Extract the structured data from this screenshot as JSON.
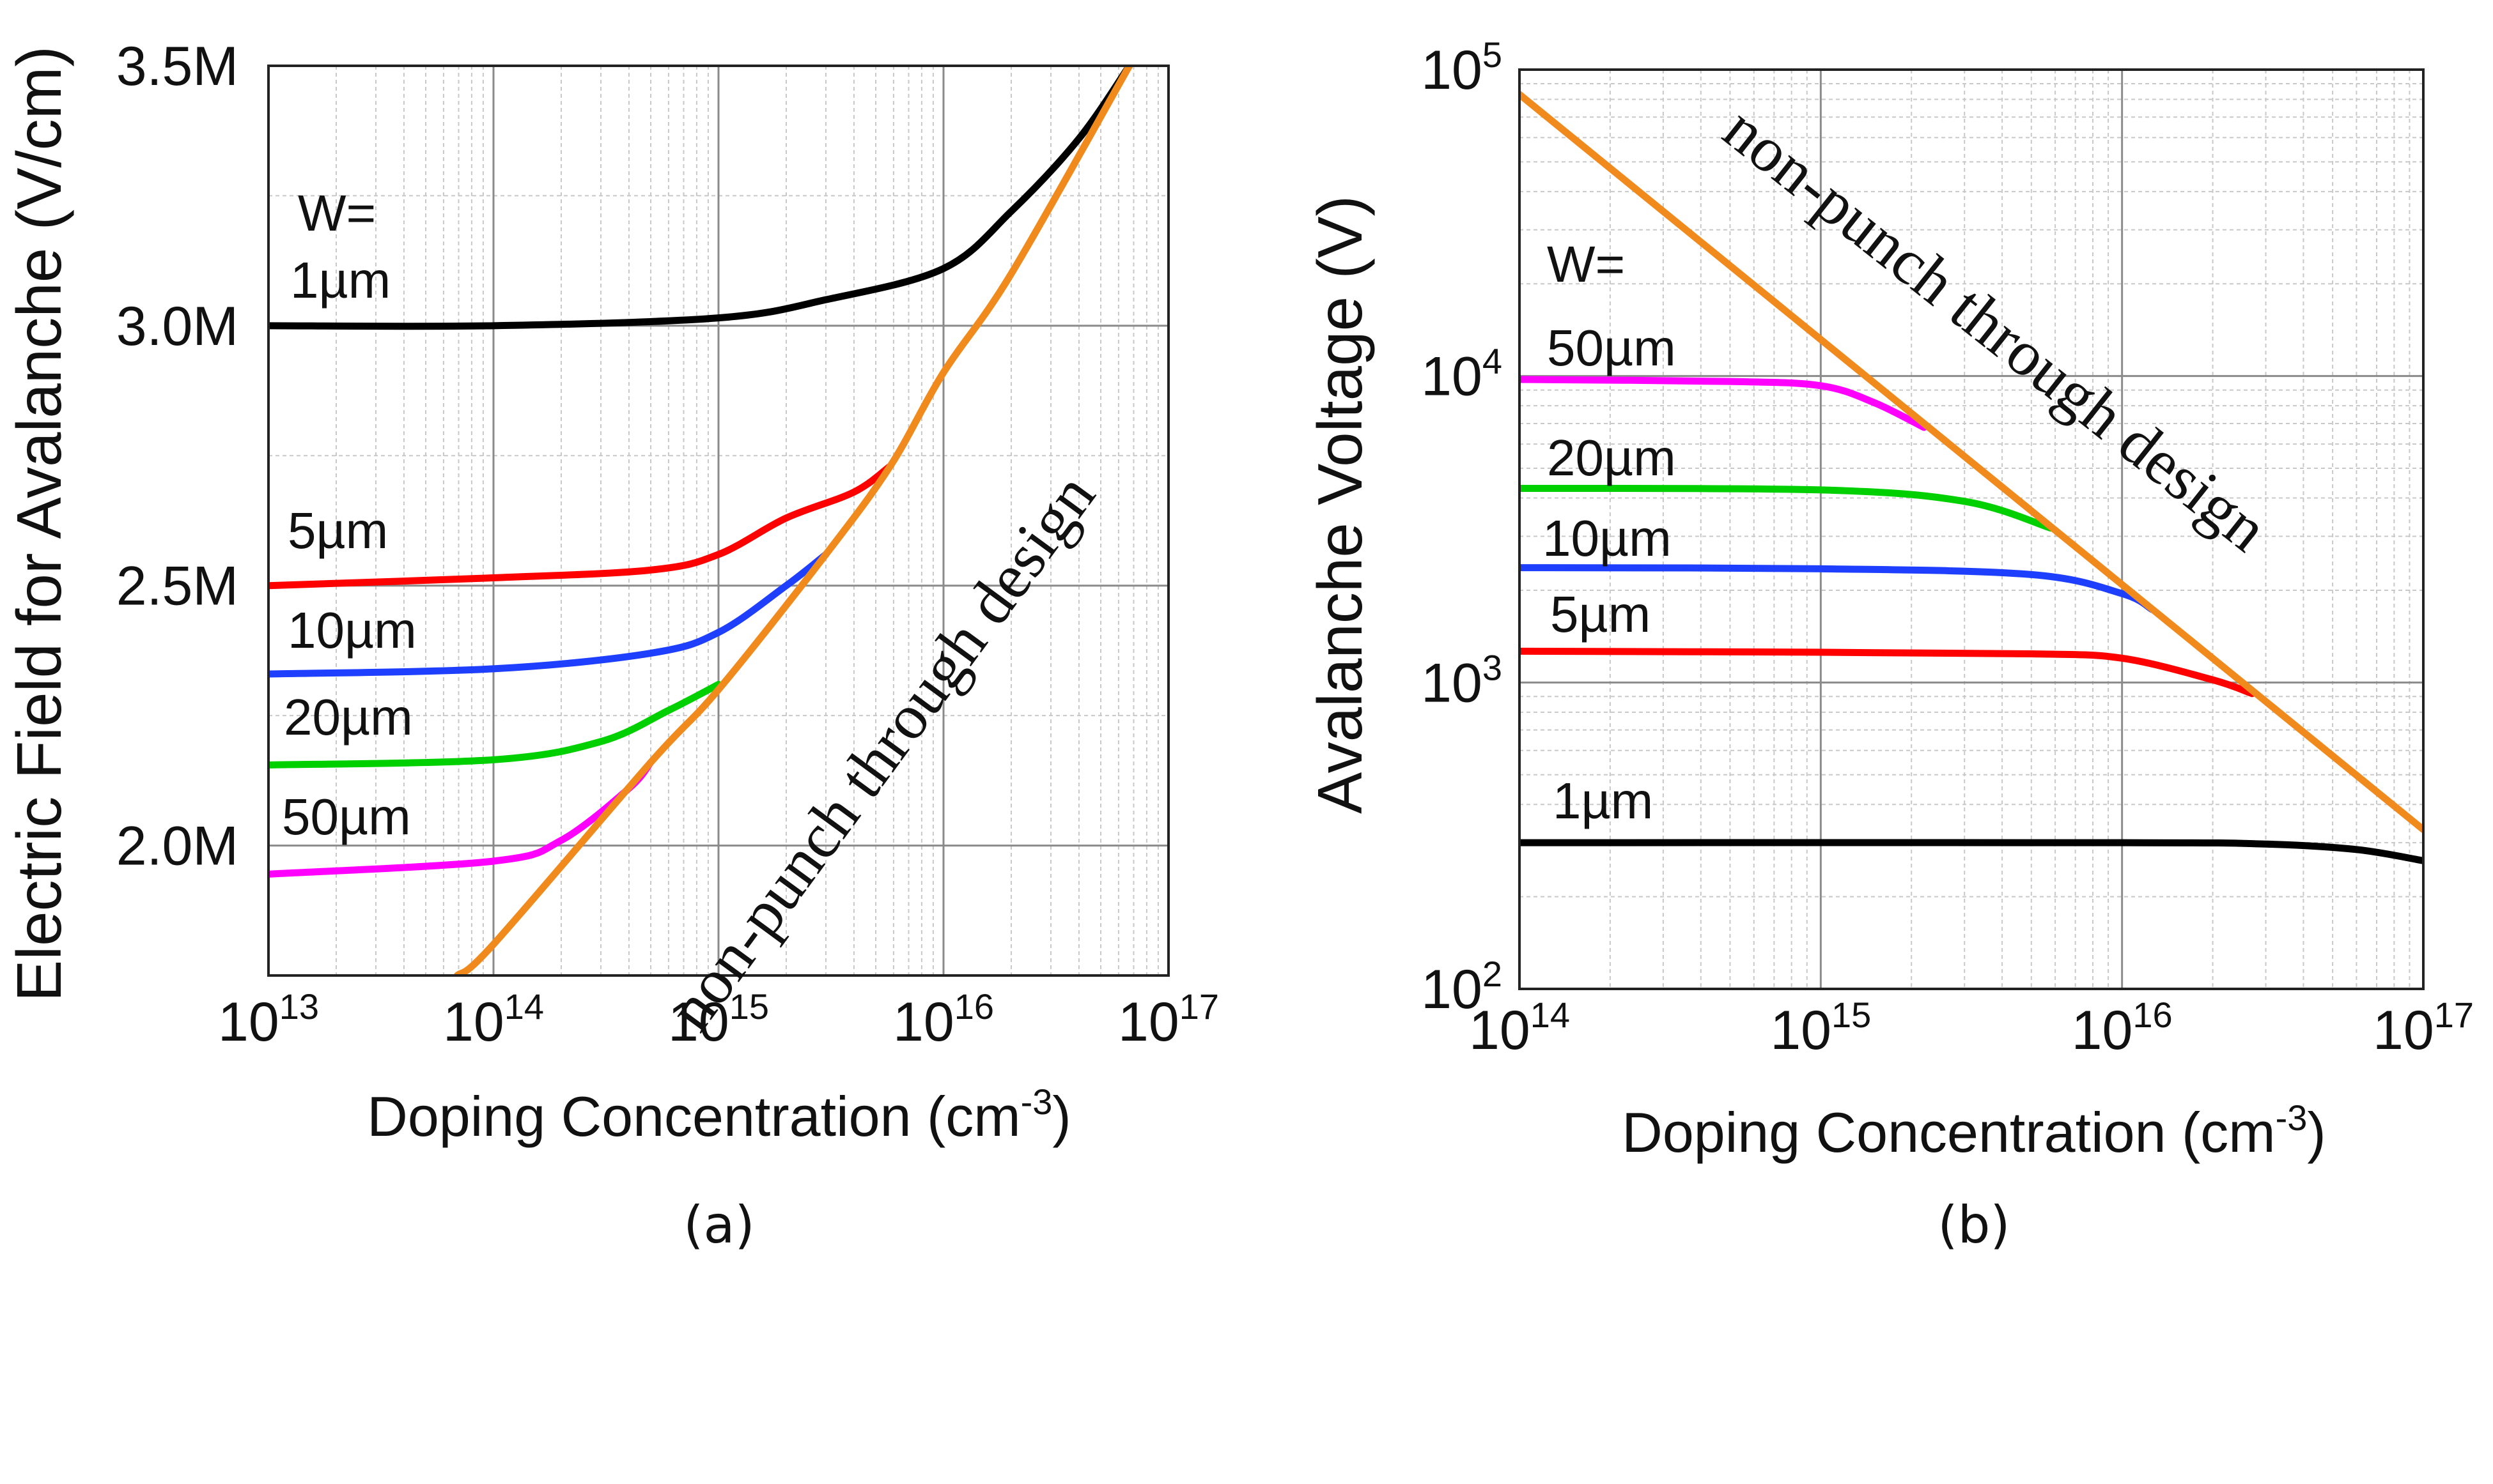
{
  "chart_data": [
    {
      "type": "line",
      "panel_label": "(a)",
      "xlabel": "Doping Concentration (cm-3)",
      "ylabel": "Electric Field for Avalanche (V/cm)",
      "x_scale": "log",
      "y_scale": "linear",
      "xlim": [
        10000000000000.0,
        1e+17
      ],
      "ylim": [
        1750000,
        3500000
      ],
      "x_ticks": [
        {
          "base": "10",
          "exp": "13"
        },
        {
          "base": "10",
          "exp": "14"
        },
        {
          "base": "10",
          "exp": "15"
        },
        {
          "base": "10",
          "exp": "16"
        },
        {
          "base": "10",
          "exp": "17"
        }
      ],
      "y_ticks": [
        {
          "value": 2000000,
          "label": "2.0M"
        },
        {
          "value": 2500000,
          "label": "2.5M"
        },
        {
          "value": 3000000,
          "label": "3.0M"
        },
        {
          "value": 3500000,
          "label": "3.5M"
        }
      ],
      "grid": true,
      "legend_header": "W=",
      "annotation": "non-punch through design",
      "series": [
        {
          "name": "1µm",
          "color": "#000000",
          "points": [
            [
              10000000000000.0,
              3000000
            ],
            [
              100000000000000.0,
              3000000
            ],
            [
              1000000000000000.0,
              3015000
            ],
            [
              3000000000000000.0,
              3050000
            ],
            [
              1e+16,
              3110000
            ],
            [
              2e+16,
              3220000
            ],
            [
              4e+16,
              3360000
            ],
            [
              6.7e+16,
              3500000
            ]
          ]
        },
        {
          "name": "5µm",
          "color": "#ff0000",
          "points": [
            [
              10000000000000.0,
              2500000
            ],
            [
              100000000000000.0,
              2515000
            ],
            [
              500000000000000.0,
              2530000
            ],
            [
              1000000000000000.0,
              2560000
            ],
            [
              2000000000000000.0,
              2630000
            ],
            [
              4000000000000000.0,
              2680000
            ],
            [
              5800000000000000.0,
              2730000
            ]
          ]
        },
        {
          "name": "10µm",
          "color": "#1f3fff",
          "points": [
            [
              10000000000000.0,
              2330000
            ],
            [
              100000000000000.0,
              2340000
            ],
            [
              500000000000000.0,
              2370000
            ],
            [
              1000000000000000.0,
              2410000
            ],
            [
              2000000000000000.0,
              2500000
            ],
            [
              3000000000000000.0,
              2560000
            ]
          ]
        },
        {
          "name": "20µm",
          "color": "#00d000",
          "points": [
            [
              10000000000000.0,
              2155000
            ],
            [
              100000000000000.0,
              2165000
            ],
            [
              300000000000000.0,
              2200000
            ],
            [
              600000000000000.0,
              2260000
            ],
            [
              1000000000000000.0,
              2310000
            ]
          ]
        },
        {
          "name": "50µm",
          "color": "#ff00ff",
          "points": [
            [
              10000000000000.0,
              1945000
            ],
            [
              100000000000000.0,
              1970000
            ],
            [
              200000000000000.0,
              2010000
            ],
            [
              400000000000000.0,
              2110000
            ],
            [
              500000000000000.0,
              2160000
            ]
          ]
        },
        {
          "name": "non-punch through design",
          "color": "#f08a1c",
          "points": [
            [
              69000000000000.0,
              1750000
            ],
            [
              100000000000000.0,
              1810000
            ],
            [
              500000000000000.0,
              2160000
            ],
            [
              1000000000000000.0,
              2300000
            ],
            [
              3000000000000000.0,
              2560000
            ],
            [
              5800000000000000.0,
              2730000
            ],
            [
              1e+16,
              2910000
            ],
            [
              2e+16,
              3100000
            ],
            [
              6.7e+16,
              3500000
            ]
          ]
        }
      ]
    },
    {
      "type": "line",
      "panel_label": "(b)",
      "xlabel": "Doping Concentration (cm-3)",
      "ylabel": "Avalanche Voltage (V)",
      "x_scale": "log",
      "y_scale": "log",
      "xlim": [
        100000000000000.0,
        1e+17
      ],
      "ylim": [
        100,
        100000
      ],
      "x_ticks": [
        {
          "base": "10",
          "exp": "14"
        },
        {
          "base": "10",
          "exp": "15"
        },
        {
          "base": "10",
          "exp": "16"
        },
        {
          "base": "10",
          "exp": "17"
        }
      ],
      "y_ticks": [
        {
          "base": "10",
          "exp": "2"
        },
        {
          "base": "10",
          "exp": "3"
        },
        {
          "base": "10",
          "exp": "4"
        },
        {
          "base": "10",
          "exp": "5"
        }
      ],
      "grid": true,
      "legend_header": "W=",
      "annotation": "non-punch through design",
      "series": [
        {
          "name": "50µm",
          "color": "#ff00ff",
          "points": [
            [
              100000000000000.0,
              9750
            ],
            [
              500000000000000.0,
              9600
            ],
            [
              1000000000000000.0,
              9300
            ],
            [
              1500000000000000.0,
              8200
            ],
            [
              2200000000000000.0,
              6800
            ]
          ]
        },
        {
          "name": "20µm",
          "color": "#00d000",
          "points": [
            [
              100000000000000.0,
              4300
            ],
            [
              1000000000000000.0,
              4250
            ],
            [
              3000000000000000.0,
              3900
            ],
            [
              5800000000000000.0,
              3190
            ]
          ]
        },
        {
          "name": "10µm",
          "color": "#1f3fff",
          "points": [
            [
              100000000000000.0,
              2370
            ],
            [
              1000000000000000.0,
              2350
            ],
            [
              5000000000000000.0,
              2250
            ],
            [
              1e+16,
              1950
            ],
            [
              1.26e+16,
              1730
            ]
          ]
        },
        {
          "name": "5µm",
          "color": "#ff0000",
          "points": [
            [
              100000000000000.0,
              1265
            ],
            [
              1000000000000000.0,
              1255
            ],
            [
              5000000000000000.0,
              1240
            ],
            [
              1e+16,
              1200
            ],
            [
              2e+16,
              1020
            ],
            [
              2.7e+16,
              920
            ]
          ]
        },
        {
          "name": "1µm",
          "color": "#000000",
          "points": [
            [
              100000000000000.0,
              300
            ],
            [
              1e+16,
              300
            ],
            [
              3e+16,
              297
            ],
            [
              6e+16,
              285
            ],
            [
              1e+17,
              262
            ]
          ]
        },
        {
          "name": "non-punch through design",
          "color": "#f08a1c",
          "points": [
            [
              100000000000000.0,
              83000
            ],
            [
              1e+17,
              331
            ]
          ]
        }
      ]
    }
  ]
}
